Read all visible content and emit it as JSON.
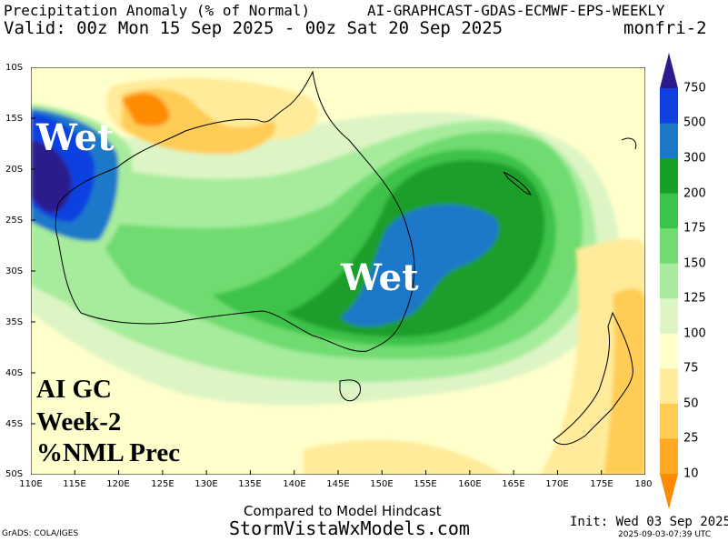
{
  "header": {
    "title": "Precipitation Anomaly (% of Normal)",
    "model": "AI-GRAPHCAST-GDAS-ECMWF-EPS-WEEKLY",
    "valid": "Valid: 00z Mon 15 Sep 2025 - 00z Sat 20 Sep 2025",
    "run_tag": "monfri-2"
  },
  "map": {
    "lat_labels": [
      "10S",
      "15S",
      "20S",
      "25S",
      "30S",
      "35S",
      "40S",
      "45S",
      "50S"
    ],
    "lon_labels": [
      "110E",
      "115E",
      "120E",
      "125E",
      "130E",
      "135E",
      "140E",
      "145E",
      "150E",
      "155E",
      "160E",
      "165E",
      "170E",
      "175E",
      "180"
    ],
    "annotations": {
      "wet_west": "Wet",
      "wet_east": "Wet",
      "model_name": "AI GC",
      "lead": "Week-2",
      "field": "%NML Prec"
    }
  },
  "colorbar": {
    "levels": [
      "10",
      "25",
      "50",
      "75",
      "100",
      "125",
      "150",
      "175",
      "200",
      "300",
      "500",
      "750"
    ],
    "colors": [
      "#ff8c00",
      "#ffaa22",
      "#ffcc55",
      "#ffeb99",
      "#ffffcc",
      "#ddf5c4",
      "#a6ec9c",
      "#70db70",
      "#3cc34a",
      "#1a9e2a",
      "#1e78c8",
      "#1040e0",
      "#2a1a8c"
    ]
  },
  "footer": {
    "subtitle": "Compared to Model Hindcast",
    "site": "StormVistaWxModels.com",
    "credit": "GrADS: COLA/IGES",
    "init": "Init: Wed 03 Sep 2025",
    "timestamp": "2025-09-03-07:39 UTC"
  }
}
